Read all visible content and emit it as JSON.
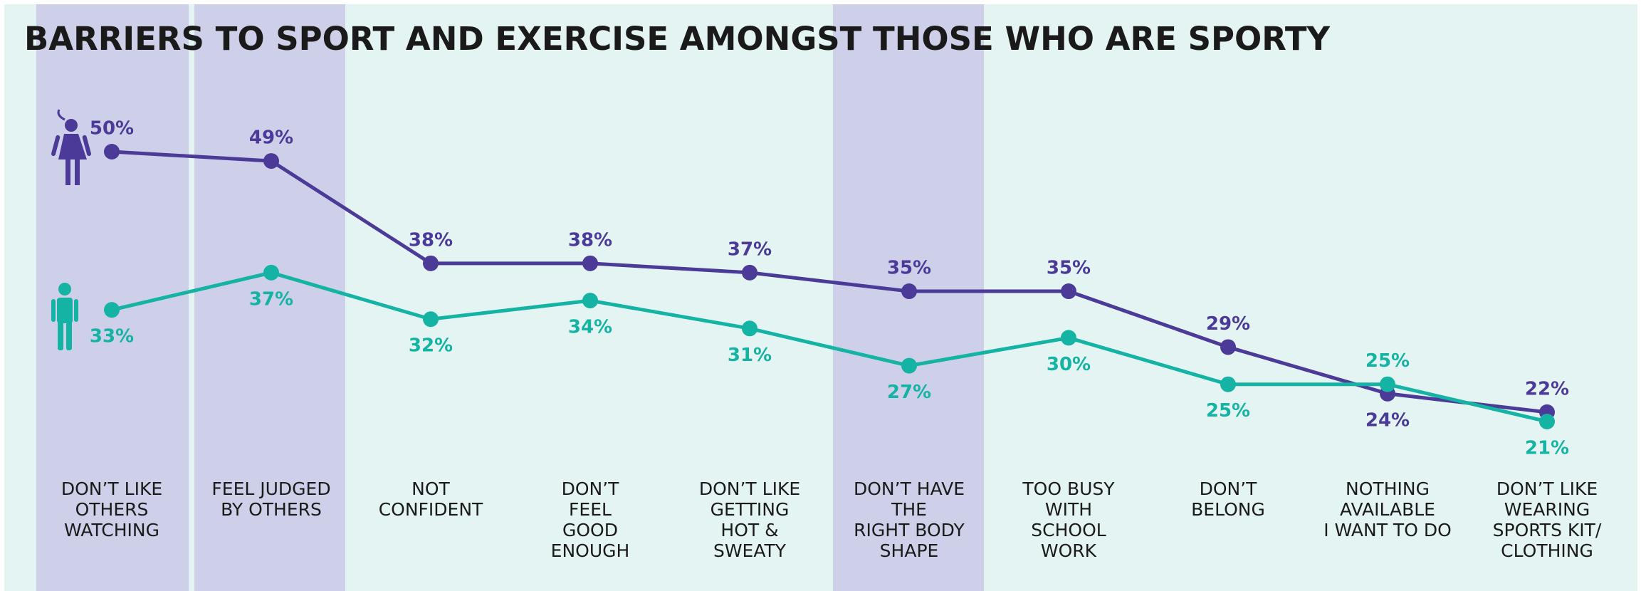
{
  "chart_data": {
    "type": "line",
    "title": "BARRIERS TO SPORT AND EXERCISE AMONGST THOSE WHO ARE SPORTY",
    "categories": [
      "DON’T LIKE\nOTHERS\nWATCHING",
      "FEEL JUDGED\nBY OTHERS",
      "NOT\nCONFIDENT",
      "DON’T\nFEEL\nGOOD\nENOUGH",
      "DON’T LIKE\nGETTING\nHOT &\nSWEATY",
      "DON’T HAVE\nTHE\nRIGHT BODY\nSHAPE",
      "TOO BUSY\nWITH\nSCHOOL\nWORK",
      "DON’T\nBELONG",
      "NOTHING\nAVAILABLE\nI WANT TO DO",
      "DON’T LIKE\nWEARING\nSPORTS KIT/\nCLOTHING"
    ],
    "series": [
      {
        "color": "#4b3a97",
        "values": [
          50,
          49,
          38,
          38,
          37,
          35,
          35,
          29,
          24,
          22
        ],
        "value_labels": [
          "50%",
          "49%",
          "38%",
          "38%",
          "37%",
          "35%",
          "35%",
          "29%",
          "24%",
          "22%"
        ]
      },
      {
        "color": "#14b3a3",
        "values": [
          33,
          37,
          32,
          34,
          31,
          27,
          30,
          25,
          25,
          21
        ],
        "value_labels": [
          "33%",
          "37%",
          "32%",
          "34%",
          "31%",
          "27%",
          "30%",
          "25%",
          "25%",
          "21%"
        ]
      }
    ]
  }
}
